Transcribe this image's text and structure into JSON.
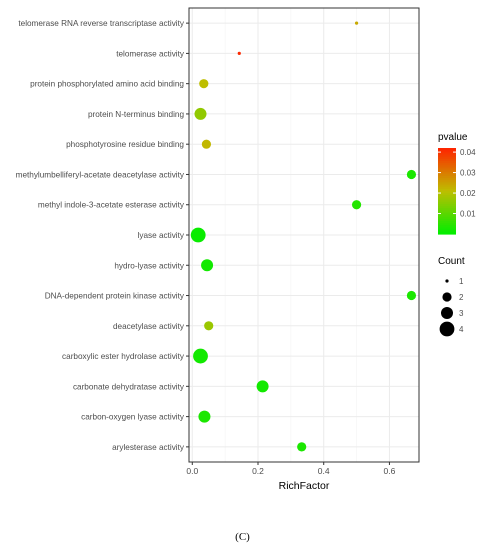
{
  "chart_data": {
    "type": "scatter",
    "xlabel": "RichFactor",
    "ylabel": "",
    "title": "",
    "xlim": [
      -0.01,
      0.69
    ],
    "x_ticks": [
      "0.0",
      "0.2",
      "0.4",
      "0.6"
    ],
    "x_tick_values": [
      0.0,
      0.2,
      0.4,
      0.6
    ],
    "grid": true,
    "categories": [
      "telomerase RNA reverse transcriptase activity",
      "telomerase activity",
      "protein phosphorylated amino acid binding",
      "protein N-terminus binding",
      "phosphotyrosine residue binding",
      "methylumbelliferyl-acetate deacetylase activity",
      "methyl indole-3-acetate esterase activity",
      "lyase activity",
      "hydro-lyase activity",
      "DNA-dependent protein kinase activity",
      "deacetylase activity",
      "carboxylic ester hydrolase activity",
      "carbonate dehydratase activity",
      "carbon-oxygen lyase activity",
      "arylesterase activity"
    ],
    "points": [
      {
        "term": "telomerase RNA reverse transcriptase activity",
        "rich_factor": 0.5,
        "count": 1,
        "pvalue": 0.024
      },
      {
        "term": "telomerase activity",
        "rich_factor": 0.143,
        "count": 1,
        "pvalue": 0.041
      },
      {
        "term": "protein phosphorylated amino acid binding",
        "rich_factor": 0.035,
        "count": 2,
        "pvalue": 0.021
      },
      {
        "term": "protein N-terminus binding",
        "rich_factor": 0.025,
        "count": 3,
        "pvalue": 0.016
      },
      {
        "term": "phosphotyrosine residue binding",
        "rich_factor": 0.043,
        "count": 2,
        "pvalue": 0.022
      },
      {
        "term": "methylumbelliferyl-acetate deacetylase activity",
        "rich_factor": 0.667,
        "count": 2,
        "pvalue": 0.003
      },
      {
        "term": "methyl indole-3-acetate esterase activity",
        "rich_factor": 0.5,
        "count": 2,
        "pvalue": 0.004
      },
      {
        "term": "lyase activity",
        "rich_factor": 0.018,
        "count": 4,
        "pvalue": 0.001
      },
      {
        "term": "hydro-lyase activity",
        "rich_factor": 0.045,
        "count": 3,
        "pvalue": 0.002
      },
      {
        "term": "DNA-dependent protein kinase activity",
        "rich_factor": 0.667,
        "count": 2,
        "pvalue": 0.003
      },
      {
        "term": "deacetylase activity",
        "rich_factor": 0.05,
        "count": 2,
        "pvalue": 0.017
      },
      {
        "term": "carboxylic ester hydrolase activity",
        "rich_factor": 0.025,
        "count": 4,
        "pvalue": 0.002
      },
      {
        "term": "carbonate dehydratase activity",
        "rich_factor": 0.214,
        "count": 3,
        "pvalue": 0.002
      },
      {
        "term": "carbon-oxygen lyase activity",
        "rich_factor": 0.037,
        "count": 3,
        "pvalue": 0.003
      },
      {
        "term": "arylesterase activity",
        "rich_factor": 0.333,
        "count": 2,
        "pvalue": 0.003
      }
    ],
    "color_legend": {
      "title": "pvalue",
      "ticks": [
        "0.04",
        "0.03",
        "0.02",
        "0.01"
      ],
      "tick_values": [
        0.04,
        0.03,
        0.02,
        0.01
      ],
      "range": [
        0.0,
        0.042
      ],
      "low_color": "#00ee00",
      "high_color": "#ff2200"
    },
    "size_legend": {
      "title": "Count",
      "values": [
        1,
        2,
        3,
        4
      ],
      "labels": [
        "1",
        "2",
        "3",
        "4"
      ]
    },
    "panel_background": "#ffffff",
    "grid_color": "#ebebeb",
    "axis_text_color": "#4d4d4d"
  },
  "caption": "(C)"
}
